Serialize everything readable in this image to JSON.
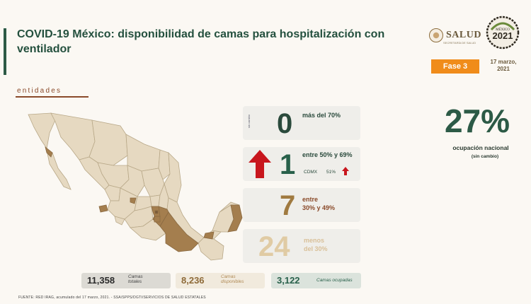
{
  "header": {
    "title": "COVID-19 México: disponibilidad de camas para hospitalización con ventilador",
    "salud_logo_text": "SALUD",
    "salud_sub": "SECRETARÍA DE SALUD",
    "year_logo": "2021",
    "year_logo_top": "MÉXICO",
    "phase_label": "Fase 3",
    "date": "17 marzo, 2021"
  },
  "section": {
    "label": "entidades"
  },
  "categories": {
    "c0": {
      "side_note": "sin cambio",
      "count": "0",
      "label": "más del 70%"
    },
    "c1": {
      "count": "1",
      "label": "entre 50% y 69%",
      "cdmx_name": "CDMX",
      "cdmx_pct": "51%"
    },
    "c2": {
      "count": "7",
      "label_line1": "entre",
      "label_line2": "30% y 49%"
    },
    "c3": {
      "count": "24",
      "label_line1": "menos",
      "label_line2": "del 30%"
    }
  },
  "national": {
    "percent": "27%",
    "label": "ocupación nacional",
    "note": "(sin cambio)"
  },
  "totals": {
    "total": {
      "value": "11,358",
      "label_line1": "Camas",
      "label_line2": "totales"
    },
    "available": {
      "value": "8,236",
      "label_line1": "Camas",
      "label_line2": "disponibles"
    },
    "occupied": {
      "value": "3,122",
      "label": "Camas ocupadas"
    }
  },
  "footer": {
    "source": "FUENTE: RED IRAG, acumulado del 17 marzo, 2021. - SSA/SPPS/DGTI/SERVICIOS DE SALUD ESTATALES"
  },
  "colors": {
    "accent_green": "#2c5a46",
    "phase_orange": "#f08c1a",
    "arrow_red": "#c8161d",
    "state_light": "#e6d9c1",
    "state_medium": "#a47e4e",
    "state_dark": "#7a5a3a"
  }
}
